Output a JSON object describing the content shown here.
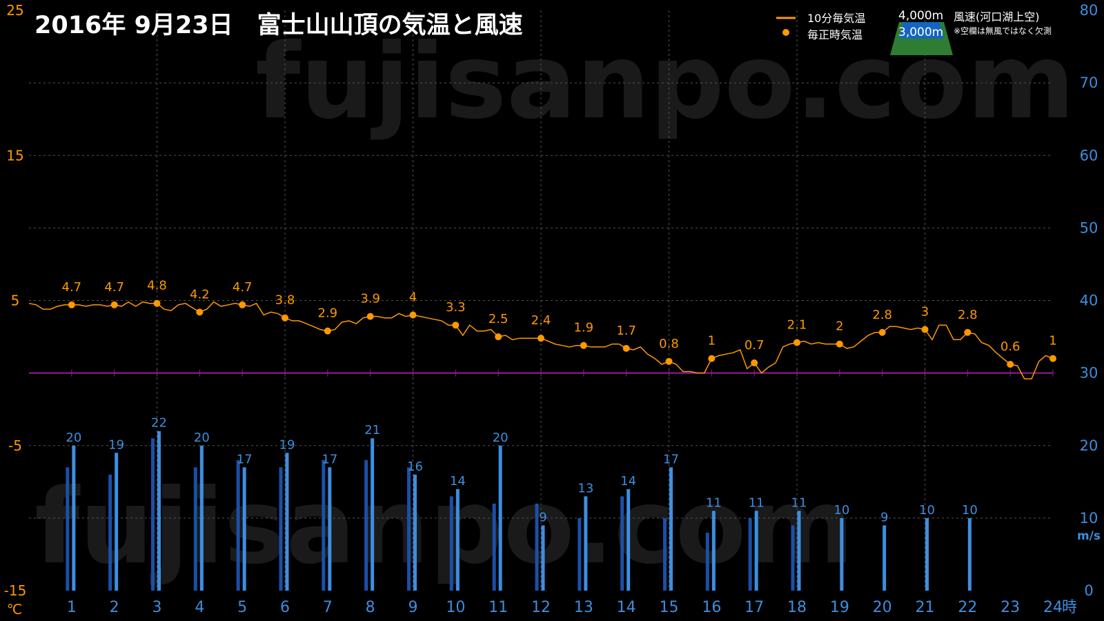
{
  "watermark": "fujisanpo.com",
  "legend": {
    "temp_line_label": "10分毎気温",
    "temp_point_label": "毎正時気温",
    "alt_4000_label": "4,000m",
    "alt_3000_label": "3,000m",
    "wind_label": "風速(河口湖上空)",
    "note": "※空欄は無風ではなく欠測"
  },
  "colors": {
    "background": "#000000",
    "temp": "#ff9900",
    "wind_3000": "#1b4fa8",
    "wind_4000": "#3d8ee0",
    "zero_line": "#9b1b9b",
    "grid": "#555555",
    "mountain_green": "#2e7d32",
    "mountain_blue": "#1565c0"
  },
  "chart_data": {
    "type": "line+bar",
    "title": "2016年 9月23日　富士山山頂の気温と風速",
    "x_unit": "時",
    "x_ticks": [
      1,
      2,
      3,
      4,
      5,
      6,
      7,
      8,
      9,
      10,
      11,
      12,
      13,
      14,
      15,
      16,
      17,
      18,
      19,
      20,
      21,
      22,
      23,
      24
    ],
    "x_range": [
      0,
      24
    ],
    "y_left": {
      "label": "℃",
      "range": [
        -15,
        25
      ],
      "ticks": [
        25,
        15,
        5,
        -5,
        -15
      ]
    },
    "y_right": {
      "label": "m/s",
      "range": [
        0,
        80
      ],
      "ticks": [
        80,
        70,
        60,
        50,
        40,
        30,
        20,
        10,
        0
      ]
    },
    "grid": true,
    "temperature_10min": [
      [
        0,
        4.8
      ],
      [
        0.17,
        4.7
      ],
      [
        0.33,
        4.4
      ],
      [
        0.5,
        4.4
      ],
      [
        0.67,
        4.6
      ],
      [
        0.83,
        4.7
      ],
      [
        1,
        4.7
      ],
      [
        1.17,
        4.7
      ],
      [
        1.33,
        4.6
      ],
      [
        1.5,
        4.7
      ],
      [
        1.67,
        4.7
      ],
      [
        1.83,
        4.6
      ],
      [
        2,
        4.7
      ],
      [
        2.17,
        4.6
      ],
      [
        2.33,
        4.9
      ],
      [
        2.5,
        4.6
      ],
      [
        2.67,
        4.9
      ],
      [
        2.83,
        4.8
      ],
      [
        3,
        4.8
      ],
      [
        3.17,
        4.4
      ],
      [
        3.33,
        4.3
      ],
      [
        3.5,
        4.7
      ],
      [
        3.67,
        4.8
      ],
      [
        3.83,
        4.5
      ],
      [
        4,
        4.2
      ],
      [
        4.17,
        4.4
      ],
      [
        4.33,
        4.9
      ],
      [
        4.5,
        4.6
      ],
      [
        4.67,
        4.7
      ],
      [
        4.83,
        4.8
      ],
      [
        5,
        4.7
      ],
      [
        5.17,
        4.6
      ],
      [
        5.33,
        4.8
      ],
      [
        5.5,
        4.0
      ],
      [
        5.67,
        4.2
      ],
      [
        5.83,
        4.1
      ],
      [
        6,
        3.8
      ],
      [
        6.17,
        3.6
      ],
      [
        6.33,
        3.6
      ],
      [
        6.5,
        3.4
      ],
      [
        6.67,
        3.2
      ],
      [
        6.83,
        3.0
      ],
      [
        7,
        2.9
      ],
      [
        7.17,
        3.0
      ],
      [
        7.33,
        3.5
      ],
      [
        7.5,
        3.6
      ],
      [
        7.67,
        3.4
      ],
      [
        7.83,
        3.8
      ],
      [
        8,
        3.9
      ],
      [
        8.17,
        3.9
      ],
      [
        8.33,
        3.8
      ],
      [
        8.5,
        3.8
      ],
      [
        8.67,
        4.1
      ],
      [
        8.83,
        3.9
      ],
      [
        9,
        4.0
      ],
      [
        9.17,
        3.9
      ],
      [
        9.33,
        3.8
      ],
      [
        9.5,
        3.7
      ],
      [
        9.67,
        3.6
      ],
      [
        9.83,
        3.3
      ],
      [
        10,
        3.3
      ],
      [
        10.17,
        2.6
      ],
      [
        10.33,
        3.3
      ],
      [
        10.5,
        2.9
      ],
      [
        10.67,
        2.9
      ],
      [
        10.83,
        3.0
      ],
      [
        11,
        2.5
      ],
      [
        11.17,
        2.6
      ],
      [
        11.33,
        2.3
      ],
      [
        11.5,
        2.4
      ],
      [
        11.67,
        2.4
      ],
      [
        11.83,
        2.4
      ],
      [
        12,
        2.4
      ],
      [
        12.17,
        2.2
      ],
      [
        12.33,
        2.0
      ],
      [
        12.5,
        1.9
      ],
      [
        12.67,
        1.8
      ],
      [
        12.83,
        1.9
      ],
      [
        13,
        1.9
      ],
      [
        13.17,
        1.8
      ],
      [
        13.33,
        1.8
      ],
      [
        13.5,
        1.8
      ],
      [
        13.67,
        2.0
      ],
      [
        13.83,
        2.0
      ],
      [
        14,
        1.7
      ],
      [
        14.17,
        1.6
      ],
      [
        14.33,
        1.8
      ],
      [
        14.5,
        1.3
      ],
      [
        14.67,
        1.0
      ],
      [
        14.83,
        0.6
      ],
      [
        15,
        0.8
      ],
      [
        15.17,
        0.6
      ],
      [
        15.33,
        0.1
      ],
      [
        15.5,
        0.1
      ],
      [
        15.67,
        0.0
      ],
      [
        15.83,
        0.0
      ],
      [
        16,
        1.0
      ],
      [
        16.17,
        1.2
      ],
      [
        16.33,
        1.3
      ],
      [
        16.5,
        1.4
      ],
      [
        16.67,
        1.6
      ],
      [
        16.83,
        0.3
      ],
      [
        17,
        0.7
      ],
      [
        17.17,
        0.0
      ],
      [
        17.33,
        0.4
      ],
      [
        17.5,
        0.7
      ],
      [
        17.67,
        1.8
      ],
      [
        17.83,
        2.0
      ],
      [
        18,
        2.1
      ],
      [
        18.17,
        2.2
      ],
      [
        18.33,
        2.0
      ],
      [
        18.5,
        2.1
      ],
      [
        18.67,
        2.0
      ],
      [
        18.83,
        2.0
      ],
      [
        19,
        2.0
      ],
      [
        19.17,
        1.7
      ],
      [
        19.33,
        1.8
      ],
      [
        19.5,
        2.2
      ],
      [
        19.67,
        2.6
      ],
      [
        19.83,
        2.8
      ],
      [
        20,
        2.8
      ],
      [
        20.17,
        3.2
      ],
      [
        20.33,
        3.2
      ],
      [
        20.5,
        3.1
      ],
      [
        20.67,
        3.0
      ],
      [
        20.83,
        3.1
      ],
      [
        21,
        3.0
      ],
      [
        21.17,
        2.3
      ],
      [
        21.33,
        3.3
      ],
      [
        21.5,
        3.3
      ],
      [
        21.67,
        2.3
      ],
      [
        21.83,
        2.3
      ],
      [
        22,
        2.8
      ],
      [
        22.17,
        2.7
      ],
      [
        22.33,
        2.1
      ],
      [
        22.5,
        1.9
      ],
      [
        22.67,
        1.4
      ],
      [
        22.83,
        1.0
      ],
      [
        23,
        0.6
      ],
      [
        23.17,
        0.5
      ],
      [
        23.33,
        -0.4
      ],
      [
        23.5,
        -0.4
      ],
      [
        23.67,
        0.8
      ],
      [
        23.83,
        1.2
      ],
      [
        24,
        1.0
      ]
    ],
    "temperature_hourly": [
      {
        "x": 1,
        "v": 4.7
      },
      {
        "x": 2,
        "v": 4.7
      },
      {
        "x": 3,
        "v": 4.8
      },
      {
        "x": 4,
        "v": 4.2
      },
      {
        "x": 5,
        "v": 4.7
      },
      {
        "x": 6,
        "v": 3.8
      },
      {
        "x": 7,
        "v": 2.9
      },
      {
        "x": 8,
        "v": 3.9
      },
      {
        "x": 9,
        "v": 4
      },
      {
        "x": 10,
        "v": 3.3
      },
      {
        "x": 11,
        "v": 2.5
      },
      {
        "x": 12,
        "v": 2.4
      },
      {
        "x": 13,
        "v": 1.9
      },
      {
        "x": 14,
        "v": 1.7
      },
      {
        "x": 15,
        "v": 0.8
      },
      {
        "x": 16,
        "v": 1
      },
      {
        "x": 17,
        "v": 0.7
      },
      {
        "x": 18,
        "v": 2.1
      },
      {
        "x": 19,
        "v": 2
      },
      {
        "x": 20,
        "v": 2.8
      },
      {
        "x": 21,
        "v": 3
      },
      {
        "x": 22,
        "v": 2.8
      },
      {
        "x": 23,
        "v": 0.6
      },
      {
        "x": 24,
        "v": 1
      }
    ],
    "wind_3000m": [
      {
        "x": 1,
        "v": 17
      },
      {
        "x": 2,
        "v": 16
      },
      {
        "x": 3,
        "v": 21
      },
      {
        "x": 4,
        "v": 17
      },
      {
        "x": 5,
        "v": 18
      },
      {
        "x": 6,
        "v": 17
      },
      {
        "x": 7,
        "v": 18
      },
      {
        "x": 8,
        "v": 18
      },
      {
        "x": 9,
        "v": 17
      },
      {
        "x": 10,
        "v": 13
      },
      {
        "x": 11,
        "v": 12
      },
      {
        "x": 12,
        "v": 12
      },
      {
        "x": 13,
        "v": 10
      },
      {
        "x": 14,
        "v": 13
      },
      {
        "x": 15,
        "v": 10
      },
      {
        "x": 16,
        "v": 8
      },
      {
        "x": 17,
        "v": 10
      },
      {
        "x": 18,
        "v": 9
      }
    ],
    "wind_4000m": [
      {
        "x": 1,
        "v": 20
      },
      {
        "x": 2,
        "v": 19
      },
      {
        "x": 3,
        "v": 22
      },
      {
        "x": 4,
        "v": 20
      },
      {
        "x": 5,
        "v": 17
      },
      {
        "x": 6,
        "v": 19
      },
      {
        "x": 7,
        "v": 17
      },
      {
        "x": 8,
        "v": 21
      },
      {
        "x": 9,
        "v": 16
      },
      {
        "x": 10,
        "v": 14
      },
      {
        "x": 11,
        "v": 20
      },
      {
        "x": 12,
        "v": 9
      },
      {
        "x": 13,
        "v": 13
      },
      {
        "x": 14,
        "v": 14
      },
      {
        "x": 15,
        "v": 17
      },
      {
        "x": 16,
        "v": 11
      },
      {
        "x": 17,
        "v": 11
      },
      {
        "x": 18,
        "v": 11
      },
      {
        "x": 19,
        "v": 10
      },
      {
        "x": 20,
        "v": 9
      },
      {
        "x": 21,
        "v": 10
      },
      {
        "x": 22,
        "v": 10
      }
    ]
  }
}
